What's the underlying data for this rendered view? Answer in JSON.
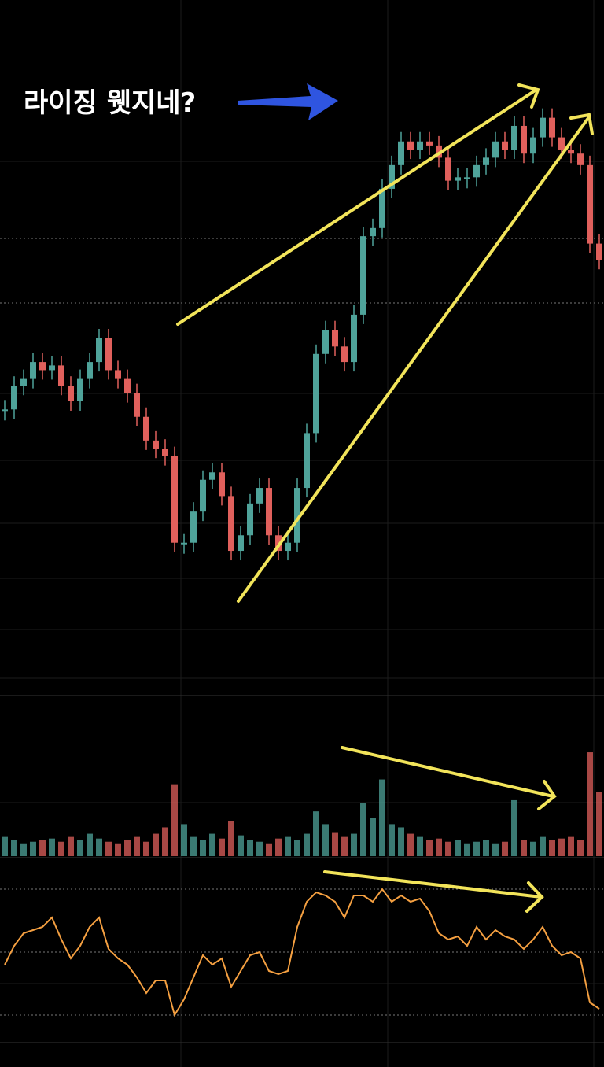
{
  "chart_data": {
    "type": "candlestick",
    "annotation": "라이징 웻지네?",
    "values": [
      39.5,
      43,
      44,
      46.5,
      45.3,
      46,
      43,
      40.7,
      44,
      46.5,
      50,
      45.3,
      44,
      41.9,
      38.4,
      34.9,
      33.7,
      32.6,
      19.8,
      19.8,
      24.4,
      29.1,
      30.2,
      26.7,
      18.6,
      20.9,
      25.6,
      27.9,
      20.9,
      18.6,
      19.8,
      27.9,
      36,
      47.7,
      51.2,
      48.8,
      46.5,
      53.5,
      65.1,
      66.3,
      72.1,
      75.6,
      79.1,
      77.9,
      79.1,
      78.5,
      76.7,
      73.3,
      73.8,
      73.8,
      75.6,
      76.7,
      79.1,
      77.9,
      81.4,
      77.3,
      79.7,
      82.6,
      79.7,
      77.9,
      77.3,
      75.6,
      64,
      61.6
    ],
    "ylim": [
      0,
      100
    ],
    "volume": [
      12,
      10,
      8,
      9,
      10,
      11,
      9,
      12,
      10,
      14,
      11,
      9,
      8,
      10,
      12,
      9,
      14,
      18,
      45,
      20,
      12,
      10,
      14,
      11,
      22,
      13,
      10,
      9,
      8,
      11,
      12,
      10,
      14,
      28,
      20,
      15,
      12,
      14,
      33,
      24,
      48,
      20,
      18,
      14,
      12,
      10,
      11,
      9,
      10,
      8,
      9,
      10,
      8,
      9,
      35,
      10,
      9,
      12,
      10,
      11,
      12,
      10,
      65,
      40
    ],
    "volume_ylim": [
      0,
      100
    ],
    "rsi": [
      46,
      52,
      56,
      57,
      58,
      61,
      54,
      48,
      52,
      58,
      61,
      51,
      48,
      46,
      42,
      37,
      41,
      41,
      30,
      35,
      42,
      49,
      46,
      48,
      39,
      44,
      49,
      50,
      44,
      43,
      44,
      58,
      66,
      69,
      68,
      66,
      61,
      68,
      68,
      66,
      70,
      66,
      68,
      66,
      67,
      63,
      56,
      54,
      55,
      52,
      58,
      54,
      57,
      55,
      54,
      51,
      54,
      58,
      52,
      49,
      50,
      48,
      34,
      32
    ],
    "rsi_ylim": [
      20,
      80
    ],
    "rsi_levels": [
      70,
      50,
      30
    ],
    "up_color": "#4fa39a",
    "down_color": "#e0605c",
    "rsi_color": "#f5a041"
  }
}
